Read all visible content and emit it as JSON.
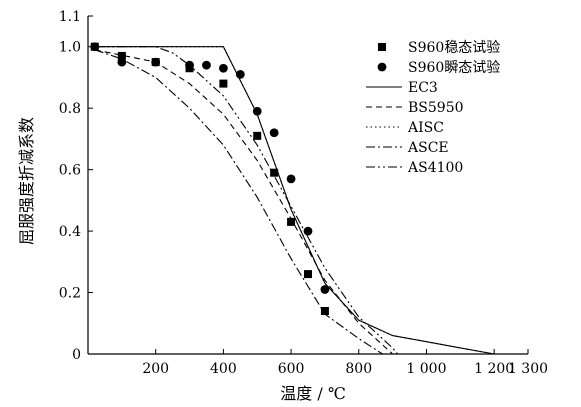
{
  "chart_data": {
    "type": "scatter",
    "title": "",
    "xlabel": "温度 / ℃",
    "ylabel": "屈服强度折减系数",
    "xlim": [
      0,
      1300
    ],
    "ylim": [
      0,
      1.1
    ],
    "x_ticks": [
      0,
      200,
      400,
      600,
      800,
      1000,
      1200,
      1300
    ],
    "x_tick_labels": [
      "",
      "200",
      "400",
      "600",
      "800",
      "1 000",
      "1 200",
      "1 300"
    ],
    "y_ticks": [
      0,
      0.2,
      0.4,
      0.6,
      0.8,
      1.0,
      1.1
    ],
    "y_tick_labels": [
      "0",
      "0.2",
      "0.4",
      "0.6",
      "0.8",
      "1.0",
      "1.1"
    ],
    "grid": false,
    "legend_position": "top-right",
    "series": [
      {
        "name": "S960稳态试验",
        "kind": "marker",
        "marker": "square",
        "x": [
          20,
          100,
          200,
          300,
          400,
          500,
          550,
          600,
          650,
          700
        ],
        "y": [
          1.0,
          0.97,
          0.95,
          0.93,
          0.88,
          0.71,
          0.59,
          0.43,
          0.26,
          0.14
        ]
      },
      {
        "name": "S960瞬态试验",
        "kind": "marker",
        "marker": "circle",
        "x": [
          20,
          100,
          200,
          300,
          350,
          400,
          450,
          500,
          550,
          600,
          650,
          700
        ],
        "y": [
          1.0,
          0.95,
          0.95,
          0.94,
          0.94,
          0.93,
          0.91,
          0.79,
          0.72,
          0.57,
          0.4,
          0.21
        ]
      },
      {
        "name": "EC3",
        "kind": "line",
        "dash": "solid",
        "x": [
          20,
          400,
          500,
          600,
          700,
          800,
          900,
          1000,
          1100,
          1200
        ],
        "y": [
          1.0,
          1.0,
          0.78,
          0.47,
          0.23,
          0.11,
          0.06,
          0.04,
          0.02,
          0.0
        ]
      },
      {
        "name": "BS5950",
        "kind": "line",
        "dash": "dashed",
        "x": [
          20,
          200,
          300,
          400,
          500,
          600,
          700,
          800,
          900
        ],
        "y": [
          0.99,
          0.95,
          0.88,
          0.78,
          0.63,
          0.44,
          0.24,
          0.1,
          0.0
        ]
      },
      {
        "name": "AISC",
        "kind": "line",
        "dash": "dotted",
        "x": [
          20,
          400,
          500,
          600,
          700,
          800,
          900,
          1000,
          1100,
          1200
        ],
        "y": [
          1.0,
          1.0,
          0.78,
          0.47,
          0.23,
          0.11,
          0.06,
          0.04,
          0.02,
          0.0
        ]
      },
      {
        "name": "ASCE",
        "kind": "line",
        "dash": "dash-dot",
        "x": [
          20,
          100,
          200,
          300,
          400,
          500,
          600,
          700,
          800,
          870
        ],
        "y": [
          0.99,
          0.96,
          0.9,
          0.8,
          0.68,
          0.51,
          0.31,
          0.13,
          0.05,
          0.0
        ]
      },
      {
        "name": "AS4100",
        "kind": "line",
        "dash": "dash-dot-dot",
        "x": [
          20,
          200,
          250,
          300,
          400,
          500,
          600,
          700,
          800,
          900,
          915
        ],
        "y": [
          1.0,
          1.0,
          0.98,
          0.94,
          0.84,
          0.68,
          0.48,
          0.28,
          0.12,
          0.02,
          0.0
        ]
      }
    ]
  }
}
